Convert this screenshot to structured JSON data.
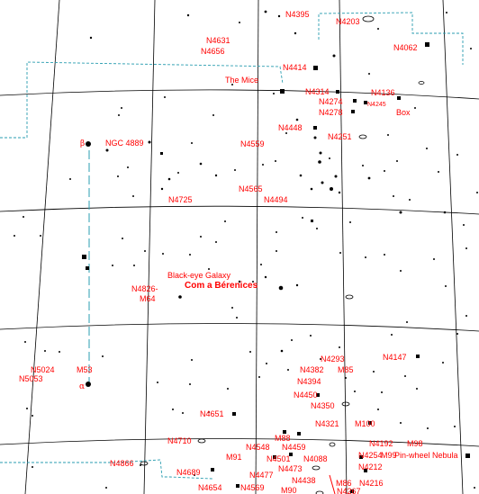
{
  "constellation": {
    "name": "Com a Bérenices",
    "bright_star_alpha": "α",
    "bright_star_beta": "β"
  },
  "labels": {
    "n4395": "N4395",
    "n4203": "N4203",
    "n4631": "N4631",
    "n4656": "N4656",
    "n4062": "N4062",
    "n4414": "N4414",
    "the_mice": "The Mice",
    "n4314": "N4314",
    "n4136": "N4136",
    "n4274": "N4274",
    "n4245": "N4245",
    "n4278": "N4278",
    "box": "Box",
    "n4448": "N4448",
    "n4251": "N4251",
    "ngc4889": "NGC 4889",
    "n4559": "N4559",
    "n4565": "N4565",
    "n4725": "N4725",
    "n4494": "N4494",
    "black_eye": "Black-eye Galaxy",
    "n4826": "N4826-",
    "m64": "M64",
    "n4293": "N4293",
    "n4147": "N4147",
    "n4382": "N4382",
    "m85": "M85",
    "n5024": "N5024",
    "m53": "M53",
    "n5053": "N5053",
    "n4394": "N4394",
    "n4450": "N4450",
    "n4350": "N4350",
    "n4651": "N4651",
    "n4321": "N4321",
    "m100": "M100",
    "m88": "M88",
    "n4710": "N4710",
    "n4548": "N4548",
    "n4459": "N4459",
    "n4192": "N4192",
    "m98": "M98",
    "m91": "M91",
    "n4501": "N4501",
    "n4088": "N4088",
    "n4254": "N4254",
    "m99": "M99",
    "pinwheel": "Pin-wheel Nebula",
    "n4866": "N4866",
    "n4473": "N4473",
    "n4212": "N4212",
    "n4689": "N4689",
    "n4477": "N4477",
    "n4654": "N4654",
    "n4569": "N4569",
    "m90": "M90",
    "m86": "M86",
    "n4216": "N4216",
    "n4438": "N4438",
    "n4267": "N4267"
  }
}
